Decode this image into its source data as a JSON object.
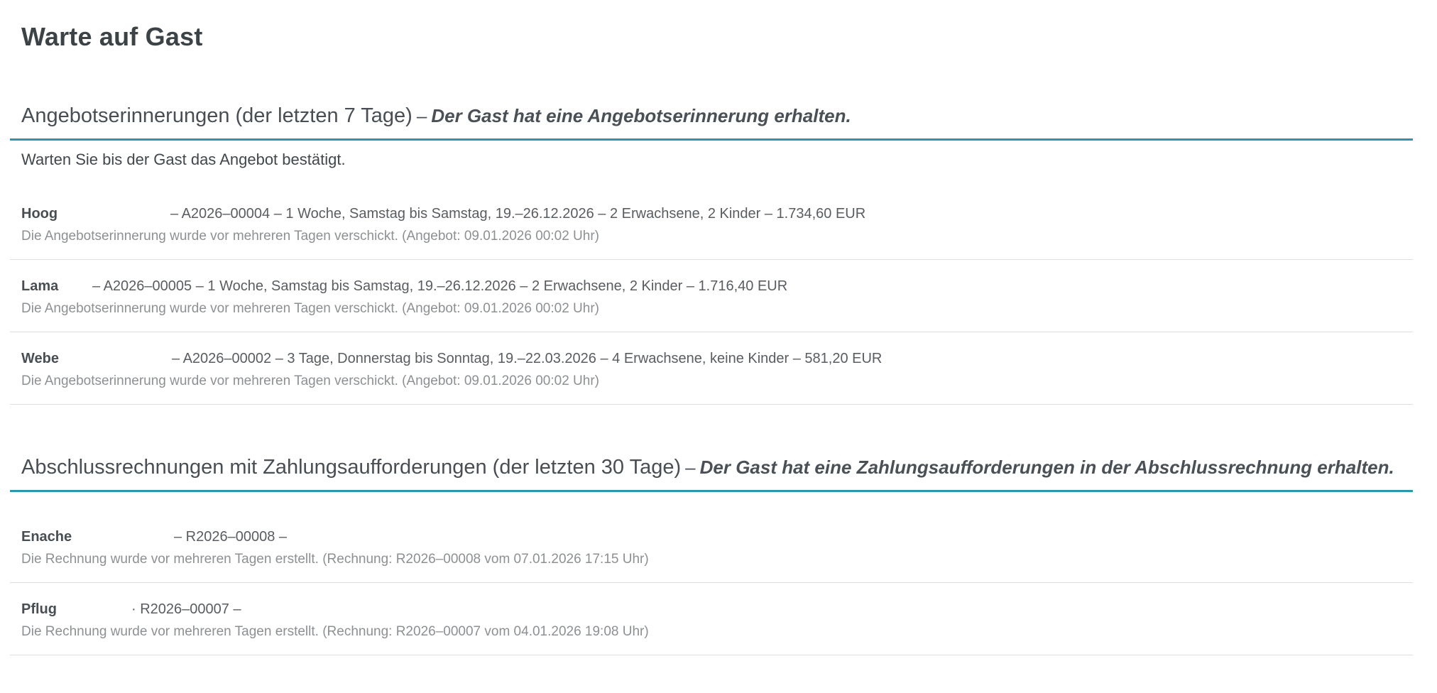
{
  "page": {
    "title": "Warte auf Gast"
  },
  "colors": {
    "accent_teal": "#2d96ad",
    "divider": "#dfdfdf"
  },
  "sections": [
    {
      "title": "Angebotserinnerungen (der letzten 7 Tage)",
      "sep": "–",
      "subtitle": "Der Gast hat eine Angebotserinnerung erhalten.",
      "hint": "Warten Sie bis der Gast das Angebot bestätigt.",
      "rows": [
        {
          "name": "Hoog",
          "name_style": "width:210px",
          "details": "– A2026–00004 – 1 Woche, Samstag bis Samstag, 19.–26.12.2026 – 2 Erwachsene, 2 Kinder – 1.734,60 EUR",
          "status": "Die Angebotserinnerung wurde vor mehreren Tagen verschickt. (Angebot: 09.01.2026 00:02 Uhr)"
        },
        {
          "name": "Lama",
          "name_style": "width:100px",
          "details": "– A2026–00005 – 1 Woche, Samstag bis Samstag, 19.–26.12.2026 – 2 Erwachsene, 2 Kinder – 1.716,40 EUR",
          "status": "Die Angebotserinnerung wurde vor mehreren Tagen verschickt. (Angebot: 09.01.2026 00:02 Uhr)"
        },
        {
          "name": "Webe",
          "name_style": "width:212px",
          "details": "– A2026–00002 – 3 Tage, Donnerstag bis Sonntag, 19.–22.03.2026 – 4 Erwachsene, keine Kinder – 581,20 EUR",
          "status": "Die Angebotserinnerung wurde vor mehreren Tagen verschickt. (Angebot: 09.01.2026 00:02 Uhr)"
        }
      ]
    },
    {
      "title": "Abschlussrechnungen mit Zahlungsaufforderungen (der letzten 30 Tage)",
      "sep": "–",
      "subtitle": "Der Gast hat eine Zahlungsaufforderungen in der Abschlussrechnung erhalten.",
      "hint": "",
      "rows": [
        {
          "name": "Enache",
          "name_style": "width:215px",
          "details": "– R2026–00008 –",
          "status": "Die Rechnung wurde vor mehreren Tagen erstellt. (Rechnung: R2026–00008 vom 07.01.2026 17:15 Uhr)"
        },
        {
          "name": "Pflug",
          "name_style": "width:155px",
          "details": "· R2026–00007 –",
          "status": "Die Rechnung wurde vor mehreren Tagen erstellt. (Rechnung: R2026–00007 vom 04.01.2026 19:08 Uhr)"
        }
      ]
    }
  ]
}
